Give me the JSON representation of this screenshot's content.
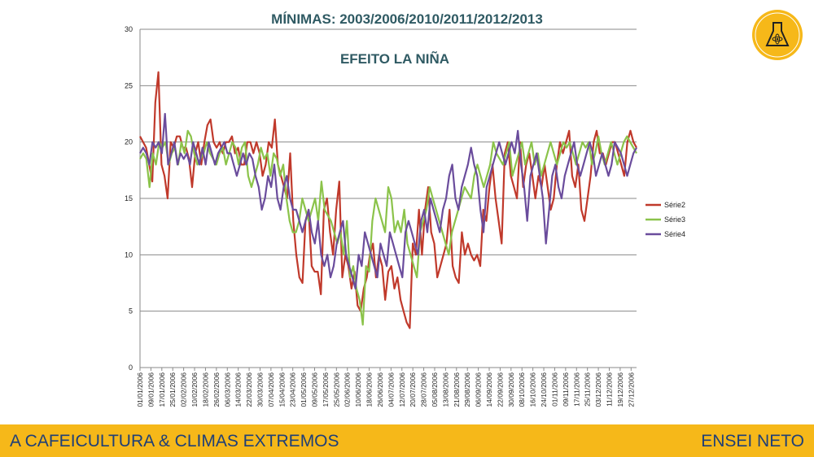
{
  "slide": {
    "title": "MÍNIMAS: 2003/2006/2010/2011/2012/2013",
    "footer_left": "A CAFEICULTURA & CLIMAS EXTREMOS",
    "footer_right": "ENSEI NETO",
    "logo_icon": "flask-atom-logo-icon",
    "colors": {
      "title": "#2f5a63",
      "footer_bg": "#f6b819",
      "footer_text": "#1f3f77"
    }
  },
  "chart_data": {
    "type": "line",
    "title": "EFEITO LA NIÑA",
    "xlabel": "",
    "ylabel": "",
    "ylim": [
      0,
      30
    ],
    "yticks": [
      0,
      5,
      10,
      15,
      20,
      25,
      30
    ],
    "grid": true,
    "legend_position": "right",
    "x_start": "01/01/2006",
    "x_end": "31/12/2006",
    "x_ticks": [
      "01/01/2006",
      "09/01/2006",
      "17/01/2006",
      "25/01/2006",
      "02/02/2006",
      "10/02/2006",
      "18/02/2006",
      "26/02/2006",
      "06/03/2006",
      "14/03/2006",
      "22/03/2006",
      "30/03/2006",
      "07/04/2006",
      "15/04/2006",
      "23/04/2006",
      "01/05/2006",
      "09/05/2006",
      "17/05/2006",
      "25/05/2006",
      "02/06/2006",
      "10/06/2006",
      "18/06/2006",
      "26/06/2006",
      "04/07/2006",
      "12/07/2006",
      "20/07/2006",
      "28/07/2006",
      "05/08/2006",
      "13/08/2006",
      "21/08/2006",
      "29/08/2006",
      "06/09/2006",
      "14/09/2006",
      "22/09/2006",
      "30/09/2006",
      "08/10/2006",
      "16/10/2006",
      "24/10/2006",
      "01/11/2006",
      "09/11/2006",
      "17/11/2006",
      "25/11/2006",
      "03/12/2006",
      "11/12/2006",
      "19/12/2006",
      "27/12/2006"
    ],
    "series": [
      {
        "name": "Série2",
        "color": "#c0392b",
        "values": [
          20.5,
          20,
          19.5,
          18,
          16.5,
          23.5,
          26.2,
          18,
          17,
          15,
          20,
          19.5,
          20.5,
          20.5,
          19.5,
          19.5,
          18.5,
          16,
          19,
          20,
          18,
          20,
          21.5,
          22,
          20,
          19.5,
          20,
          19,
          20,
          20,
          20.5,
          19,
          19.5,
          18,
          18,
          20,
          20,
          19,
          20,
          19,
          17,
          18,
          20,
          19.5,
          22,
          18,
          17,
          16,
          15,
          19,
          13,
          10,
          8,
          7.5,
          13,
          14,
          9,
          8.5,
          8.5,
          6.5,
          14,
          15,
          12,
          10,
          14,
          16.5,
          8,
          10,
          9,
          7,
          8.5,
          5.5,
          5,
          7,
          8,
          10,
          11,
          8,
          10,
          9,
          6,
          8.5,
          9,
          7,
          8,
          6,
          5,
          4,
          3.5,
          11,
          10,
          14,
          10,
          14,
          16,
          12,
          11,
          8,
          9,
          10,
          11,
          14,
          9,
          8,
          7.5,
          12,
          10,
          11,
          10,
          9.5,
          10,
          9,
          14,
          13,
          16,
          18,
          15,
          13,
          11,
          19,
          20,
          17,
          16,
          15,
          20,
          16,
          18,
          19,
          17,
          15,
          17,
          16,
          18,
          16,
          14,
          15,
          18,
          20,
          19,
          20,
          21,
          17,
          16,
          18,
          14,
          13,
          15,
          17,
          20,
          21,
          19,
          19,
          18,
          19,
          20,
          20,
          19,
          18,
          17,
          20,
          21,
          20,
          19.5
        ]
      },
      {
        "name": "Série3",
        "color": "#8bc34a",
        "values": [
          18.5,
          19,
          18.5,
          16,
          19,
          18,
          20,
          19.5,
          20,
          18,
          19,
          19.5,
          18,
          20,
          19,
          21,
          20.5,
          19,
          18,
          18.5,
          19,
          20,
          19,
          18.5,
          18,
          19,
          19.5,
          18,
          19,
          20,
          19.5,
          18,
          19.5,
          20,
          17,
          16,
          17,
          18,
          19.5,
          18.5,
          19,
          17,
          19,
          18.5,
          17,
          18,
          15,
          13,
          12,
          12,
          13,
          15,
          14,
          13,
          14,
          15,
          13,
          16.5,
          14,
          13.5,
          13,
          12,
          11,
          12,
          10,
          13,
          8,
          9,
          7,
          6,
          3.8,
          9,
          8.5,
          13,
          15,
          14,
          13,
          12,
          16,
          15,
          12,
          13,
          12,
          14,
          11,
          10,
          9,
          8,
          12,
          13,
          14,
          16,
          15,
          14,
          13,
          12,
          11,
          10,
          12,
          13,
          14,
          15,
          16,
          15.5,
          15,
          17,
          18,
          17,
          16,
          17,
          18,
          20,
          19,
          18.5,
          18,
          19,
          20,
          17,
          18,
          19,
          20,
          18,
          19,
          20,
          18,
          19,
          17,
          18,
          19,
          20,
          19,
          18,
          19,
          20,
          19.5,
          20,
          19,
          18,
          19,
          20,
          19.5,
          20,
          18,
          19,
          20.5,
          19,
          18,
          19,
          20,
          19,
          18,
          19,
          20,
          20.5,
          20,
          19.5,
          19
        ]
      },
      {
        "name": "Série4",
        "color": "#6a4c9c",
        "values": [
          19,
          19.5,
          19,
          18,
          20,
          19.5,
          20,
          19,
          22.5,
          18,
          19,
          20,
          18,
          19,
          18.5,
          19,
          18,
          20,
          19,
          18,
          19.5,
          18,
          20,
          19,
          18,
          19,
          19.5,
          20,
          19,
          19,
          18,
          17,
          18,
          19,
          18,
          19,
          18.5,
          17,
          16,
          14,
          15,
          17,
          16,
          18,
          15,
          14,
          16,
          17,
          15,
          14,
          14,
          13,
          12,
          13,
          14,
          12,
          11,
          13,
          10,
          9,
          10,
          8,
          9,
          11,
          12,
          13,
          10,
          9,
          8,
          7,
          10,
          9,
          12,
          11,
          10,
          9,
          8,
          11,
          10,
          9,
          12,
          11,
          10,
          9,
          8,
          12,
          13,
          12,
          11,
          10,
          13,
          14,
          12,
          15,
          14,
          13,
          12,
          14,
          15,
          17,
          18,
          15,
          14,
          16,
          17,
          18,
          19.5,
          18,
          17,
          14,
          12,
          16,
          17,
          18,
          19,
          20,
          19,
          18,
          19,
          20,
          19,
          21,
          18,
          16,
          13,
          17,
          18,
          19,
          17,
          15,
          11,
          14,
          17,
          18,
          16,
          15,
          17,
          18,
          19,
          20,
          18,
          17,
          18,
          19,
          20,
          19,
          17,
          18,
          19,
          18,
          17,
          18,
          20,
          19.5,
          19,
          18,
          17,
          18,
          19,
          19.5
        ]
      }
    ]
  }
}
